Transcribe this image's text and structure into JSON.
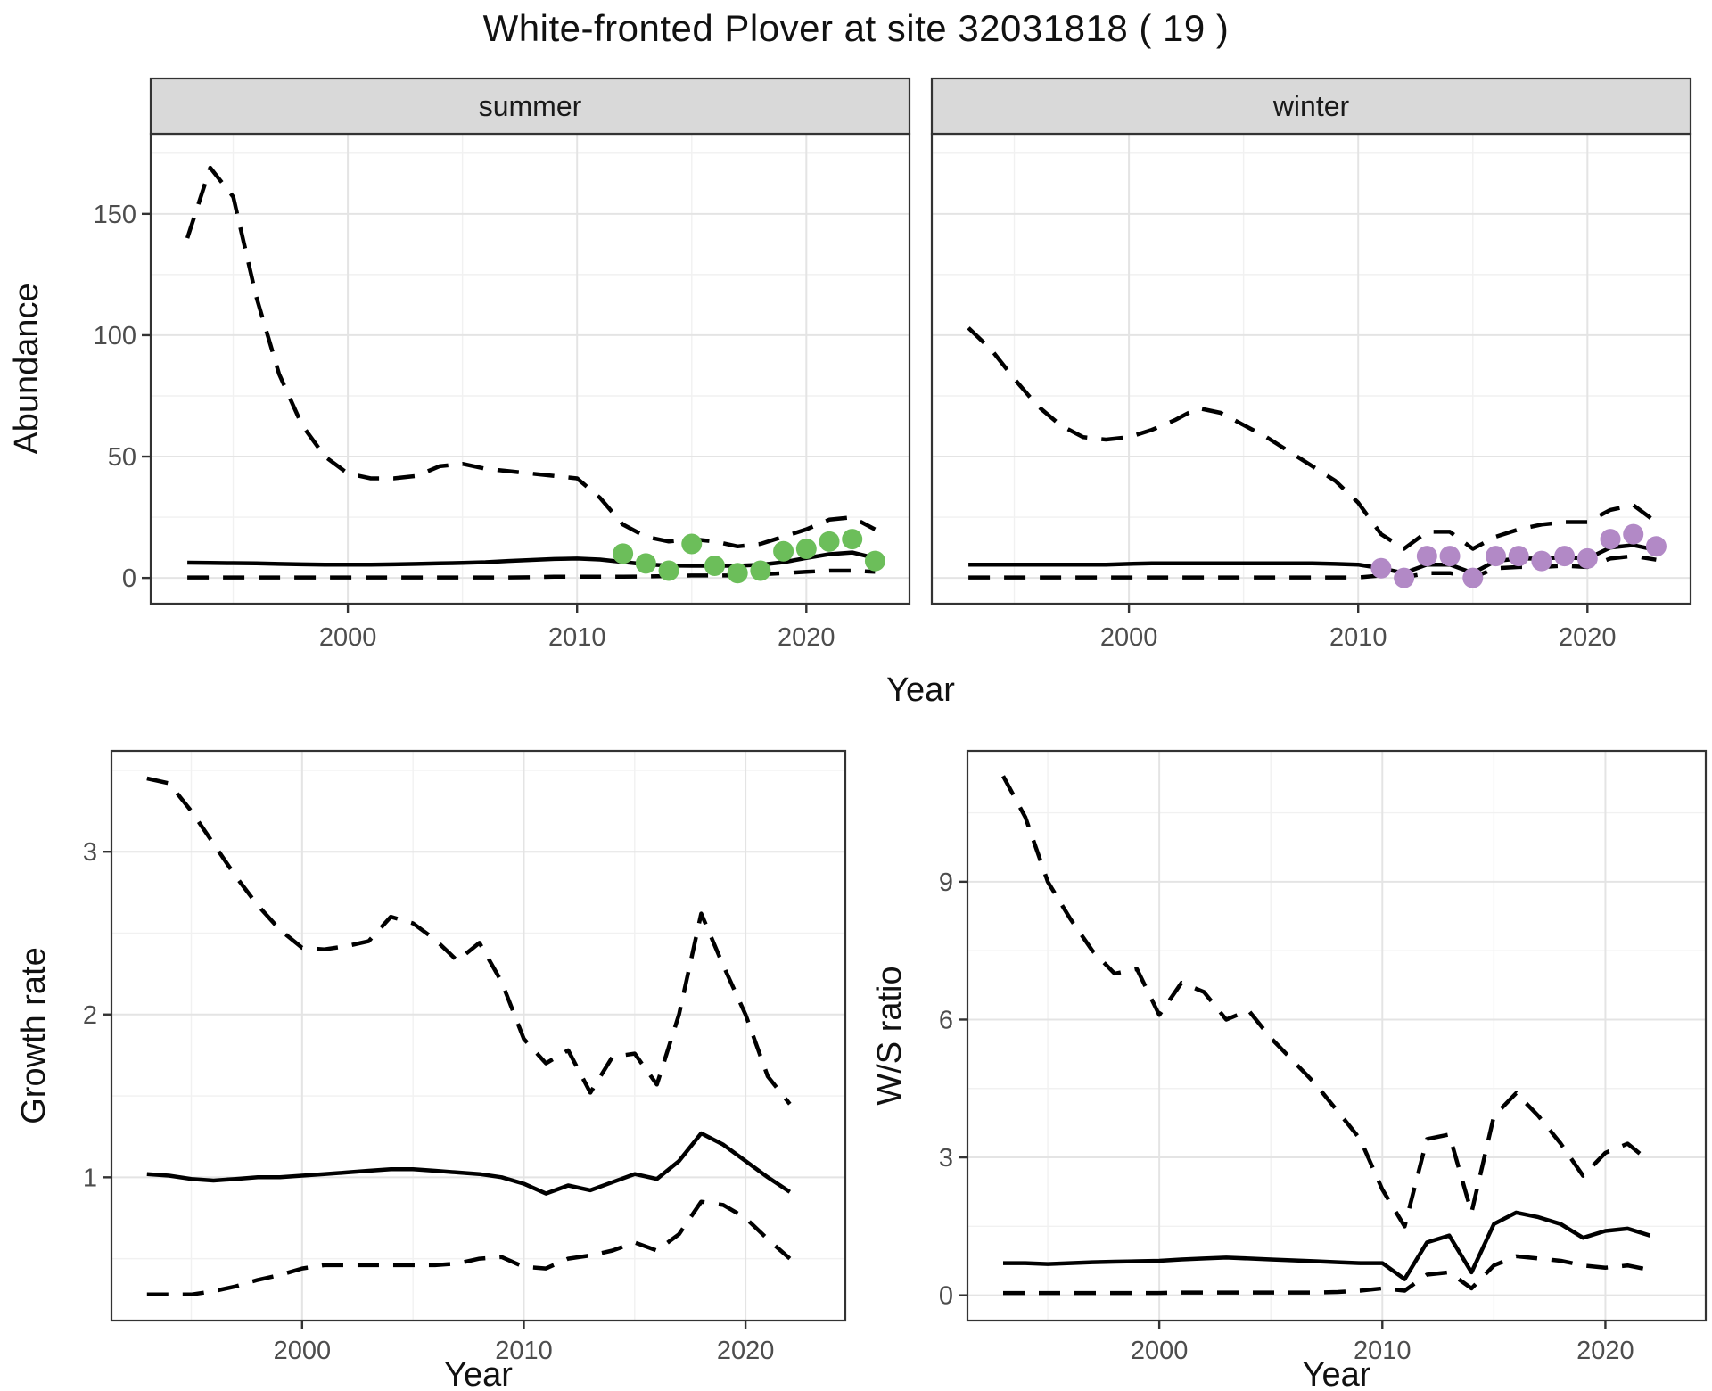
{
  "title": "White-fronted Plover at site 32031818 ( 19 )",
  "colors": {
    "summer_points": "#6CBE5A",
    "winter_points": "#B289C6",
    "line": "#000000",
    "strip_bg": "#D9D9D9",
    "strip_text": "#1A1A1A",
    "panel_border": "#333333",
    "grid_major": "#E4E4E4",
    "grid_minor": "#F1F1F1",
    "tick_text": "#4D4D4D",
    "axis_title_text": "#111111",
    "tick_mark": "#333333"
  },
  "chart_data": [
    {
      "id": "abundance-summer",
      "type": "line",
      "strip": "summer",
      "xlabel": "Year",
      "ylabel": "Abundance",
      "xlim": [
        1991.4,
        2024.5
      ],
      "ylim": [
        -10.6,
        183
      ],
      "xticks": [
        2000,
        2010,
        2020
      ],
      "yticks": [
        0,
        50,
        100,
        150
      ],
      "grid": true,
      "legend": "none",
      "x": [
        1993,
        1994,
        1995,
        1996,
        1997,
        1998,
        1999,
        2000,
        2001,
        2002,
        2003,
        2004,
        2005,
        2006,
        2007,
        2008,
        2009,
        2010,
        2011,
        2012,
        2013,
        2014,
        2015,
        2016,
        2017,
        2018,
        2019,
        2020,
        2021,
        2022,
        2023
      ],
      "series": [
        {
          "name": "upper_95ci",
          "style": "dashed",
          "values": [
            140,
            169,
            157,
            116,
            84,
            63,
            50,
            43,
            41,
            41,
            42,
            46,
            47,
            45,
            44,
            43,
            42,
            41,
            33,
            22,
            17,
            15,
            16,
            15,
            13,
            14,
            17,
            20,
            24,
            25,
            20
          ]
        },
        {
          "name": "median",
          "style": "solid",
          "values": [
            6.3,
            6.2,
            6.1,
            6.0,
            5.8,
            5.6,
            5.5,
            5.5,
            5.5,
            5.6,
            5.8,
            6.0,
            6.2,
            6.5,
            7.0,
            7.4,
            7.8,
            8.0,
            7.6,
            6.6,
            5.6,
            5.1,
            5.0,
            5.0,
            5.0,
            5.4,
            6.5,
            8.2,
            9.8,
            10.5,
            8.2
          ]
        },
        {
          "name": "lower_95ci",
          "style": "dashed",
          "values": [
            0.2,
            0.2,
            0.2,
            0.2,
            0.2,
            0.2,
            0.2,
            0.2,
            0.2,
            0.2,
            0.2,
            0.2,
            0.2,
            0.2,
            0.2,
            0.3,
            0.5,
            0.5,
            0.5,
            0.5,
            0.6,
            0.8,
            1.0,
            1.0,
            1.0,
            1.5,
            2.0,
            2.5,
            3.0,
            3.0,
            2.5
          ]
        }
      ],
      "points": {
        "name": "observed_counts_summer",
        "color_key": "summer_points",
        "x": [
          2012,
          2013,
          2014,
          2015,
          2016,
          2017,
          2018,
          2019,
          2020,
          2021,
          2022,
          2023
        ],
        "y": [
          10,
          6,
          3,
          14,
          5,
          2,
          3,
          11,
          12,
          15,
          16,
          7
        ]
      }
    },
    {
      "id": "abundance-winter",
      "type": "line",
      "strip": "winter",
      "xlabel": "Year",
      "ylabel": "",
      "xlim": [
        1991.4,
        2024.5
      ],
      "ylim": [
        -10.6,
        183
      ],
      "xticks": [
        2000,
        2010,
        2020
      ],
      "yticks": [
        0,
        50,
        100,
        150
      ],
      "grid": true,
      "legend": "none",
      "x": [
        1993,
        1994,
        1995,
        1996,
        1997,
        1998,
        1999,
        2000,
        2001,
        2002,
        2003,
        2004,
        2005,
        2006,
        2007,
        2008,
        2009,
        2010,
        2011,
        2012,
        2013,
        2014,
        2015,
        2016,
        2017,
        2018,
        2019,
        2020,
        2021,
        2022,
        2023
      ],
      "series": [
        {
          "name": "upper_95ci",
          "style": "dashed",
          "values": [
            103,
            94,
            82,
            71,
            63,
            58,
            57,
            58,
            61,
            65,
            70,
            68,
            63,
            58,
            52,
            46,
            40,
            31,
            18,
            12,
            19,
            19,
            12,
            17,
            20,
            22,
            23,
            23,
            28,
            30,
            23
          ]
        },
        {
          "name": "median",
          "style": "solid",
          "values": [
            5.5,
            5.5,
            5.5,
            5.5,
            5.5,
            5.5,
            5.5,
            5.8,
            6.0,
            6.0,
            6.0,
            6.0,
            6.0,
            6.0,
            6.0,
            6.0,
            5.8,
            5.5,
            4.0,
            2.0,
            5.5,
            5.5,
            2.0,
            7.0,
            8.0,
            8.0,
            8.5,
            8.0,
            12.5,
            13.5,
            11.5
          ]
        },
        {
          "name": "lower_95ci",
          "style": "dashed",
          "values": [
            0.2,
            0.2,
            0.2,
            0.2,
            0.2,
            0.2,
            0.2,
            0.2,
            0.2,
            0.2,
            0.2,
            0.2,
            0.2,
            0.2,
            0.2,
            0.2,
            0.2,
            0.2,
            1.0,
            0.2,
            2.0,
            2.0,
            0.2,
            4.0,
            4.5,
            4.5,
            5.0,
            4.5,
            8.0,
            9.0,
            7.5
          ]
        }
      ],
      "points": {
        "name": "observed_counts_winter",
        "color_key": "winter_points",
        "x": [
          2011,
          2012,
          2013,
          2014,
          2015,
          2016,
          2017,
          2018,
          2019,
          2020,
          2021,
          2022,
          2023
        ],
        "y": [
          4,
          0,
          9,
          9,
          0,
          9,
          9,
          7,
          9,
          8,
          16,
          18,
          13
        ]
      }
    },
    {
      "id": "growth-rate",
      "type": "line",
      "strip": null,
      "xlabel": "Year",
      "ylabel": "Growth rate",
      "xlim": [
        1991.4,
        2024.5
      ],
      "ylim": [
        0.12,
        3.62
      ],
      "xticks": [
        2000,
        2010,
        2020
      ],
      "yticks": [
        1,
        2,
        3
      ],
      "grid": true,
      "legend": "none",
      "x": [
        1993,
        1994,
        1995,
        1996,
        1997,
        1998,
        1999,
        2000,
        2001,
        2002,
        2003,
        2004,
        2005,
        2006,
        2007,
        2008,
        2009,
        2010,
        2011,
        2012,
        2013,
        2014,
        2015,
        2016,
        2017,
        2018,
        2019,
        2020,
        2021,
        2022
      ],
      "series": [
        {
          "name": "upper_95ci",
          "style": "dashed",
          "values": [
            3.45,
            3.42,
            3.25,
            3.05,
            2.85,
            2.67,
            2.52,
            2.41,
            2.4,
            2.42,
            2.45,
            2.6,
            2.56,
            2.46,
            2.33,
            2.44,
            2.2,
            1.85,
            1.7,
            1.78,
            1.52,
            1.74,
            1.76,
            1.57,
            2.0,
            2.62,
            2.3,
            2.0,
            1.62,
            1.45
          ]
        },
        {
          "name": "median",
          "style": "solid",
          "values": [
            1.02,
            1.01,
            0.99,
            0.98,
            0.99,
            1.0,
            1.0,
            1.01,
            1.02,
            1.03,
            1.04,
            1.05,
            1.05,
            1.04,
            1.03,
            1.02,
            1.0,
            0.96,
            0.9,
            0.95,
            0.92,
            0.97,
            1.02,
            0.99,
            1.1,
            1.27,
            1.2,
            1.1,
            1.0,
            0.91
          ]
        },
        {
          "name": "lower_95ci",
          "style": "dashed",
          "values": [
            0.28,
            0.28,
            0.28,
            0.3,
            0.33,
            0.37,
            0.4,
            0.44,
            0.46,
            0.46,
            0.46,
            0.46,
            0.46,
            0.46,
            0.47,
            0.5,
            0.51,
            0.45,
            0.44,
            0.5,
            0.52,
            0.55,
            0.6,
            0.55,
            0.65,
            0.85,
            0.83,
            0.75,
            0.62,
            0.5
          ]
        }
      ],
      "points": null
    },
    {
      "id": "ws-ratio",
      "type": "line",
      "strip": null,
      "xlabel": "Year",
      "ylabel": "W/S ratio",
      "xlim": [
        1991.4,
        2024.5
      ],
      "ylim": [
        -0.55,
        11.85
      ],
      "xticks": [
        2000,
        2010,
        2020
      ],
      "yticks": [
        0,
        3,
        6,
        9
      ],
      "grid": true,
      "legend": "none",
      "x": [
        1993,
        1994,
        1995,
        1996,
        1997,
        1998,
        1999,
        2000,
        2001,
        2002,
        2003,
        2004,
        2005,
        2006,
        2007,
        2008,
        2009,
        2010,
        2011,
        2012,
        2013,
        2014,
        2015,
        2016,
        2017,
        2018,
        2019,
        2020,
        2021,
        2022
      ],
      "series": [
        {
          "name": "upper_95ci",
          "style": "dashed",
          "values": [
            11.3,
            10.4,
            9.0,
            8.2,
            7.5,
            7.0,
            7.1,
            6.1,
            6.8,
            6.6,
            6.0,
            6.2,
            5.6,
            5.1,
            4.6,
            4.0,
            3.4,
            2.3,
            1.5,
            3.4,
            3.5,
            1.8,
            3.9,
            4.4,
            3.9,
            3.3,
            2.6,
            3.1,
            3.3,
            2.9
          ]
        },
        {
          "name": "median",
          "style": "solid",
          "values": [
            0.7,
            0.7,
            0.68,
            0.7,
            0.72,
            0.73,
            0.74,
            0.75,
            0.78,
            0.8,
            0.82,
            0.8,
            0.78,
            0.76,
            0.74,
            0.72,
            0.7,
            0.7,
            0.35,
            1.15,
            1.3,
            0.5,
            1.55,
            1.8,
            1.7,
            1.55,
            1.25,
            1.4,
            1.45,
            1.3
          ]
        },
        {
          "name": "lower_95ci",
          "style": "dashed",
          "values": [
            0.05,
            0.05,
            0.05,
            0.05,
            0.05,
            0.05,
            0.05,
            0.05,
            0.06,
            0.06,
            0.06,
            0.06,
            0.06,
            0.06,
            0.06,
            0.07,
            0.1,
            0.15,
            0.1,
            0.45,
            0.5,
            0.15,
            0.65,
            0.85,
            0.8,
            0.75,
            0.65,
            0.6,
            0.65,
            0.55
          ]
        }
      ],
      "points": null
    }
  ]
}
